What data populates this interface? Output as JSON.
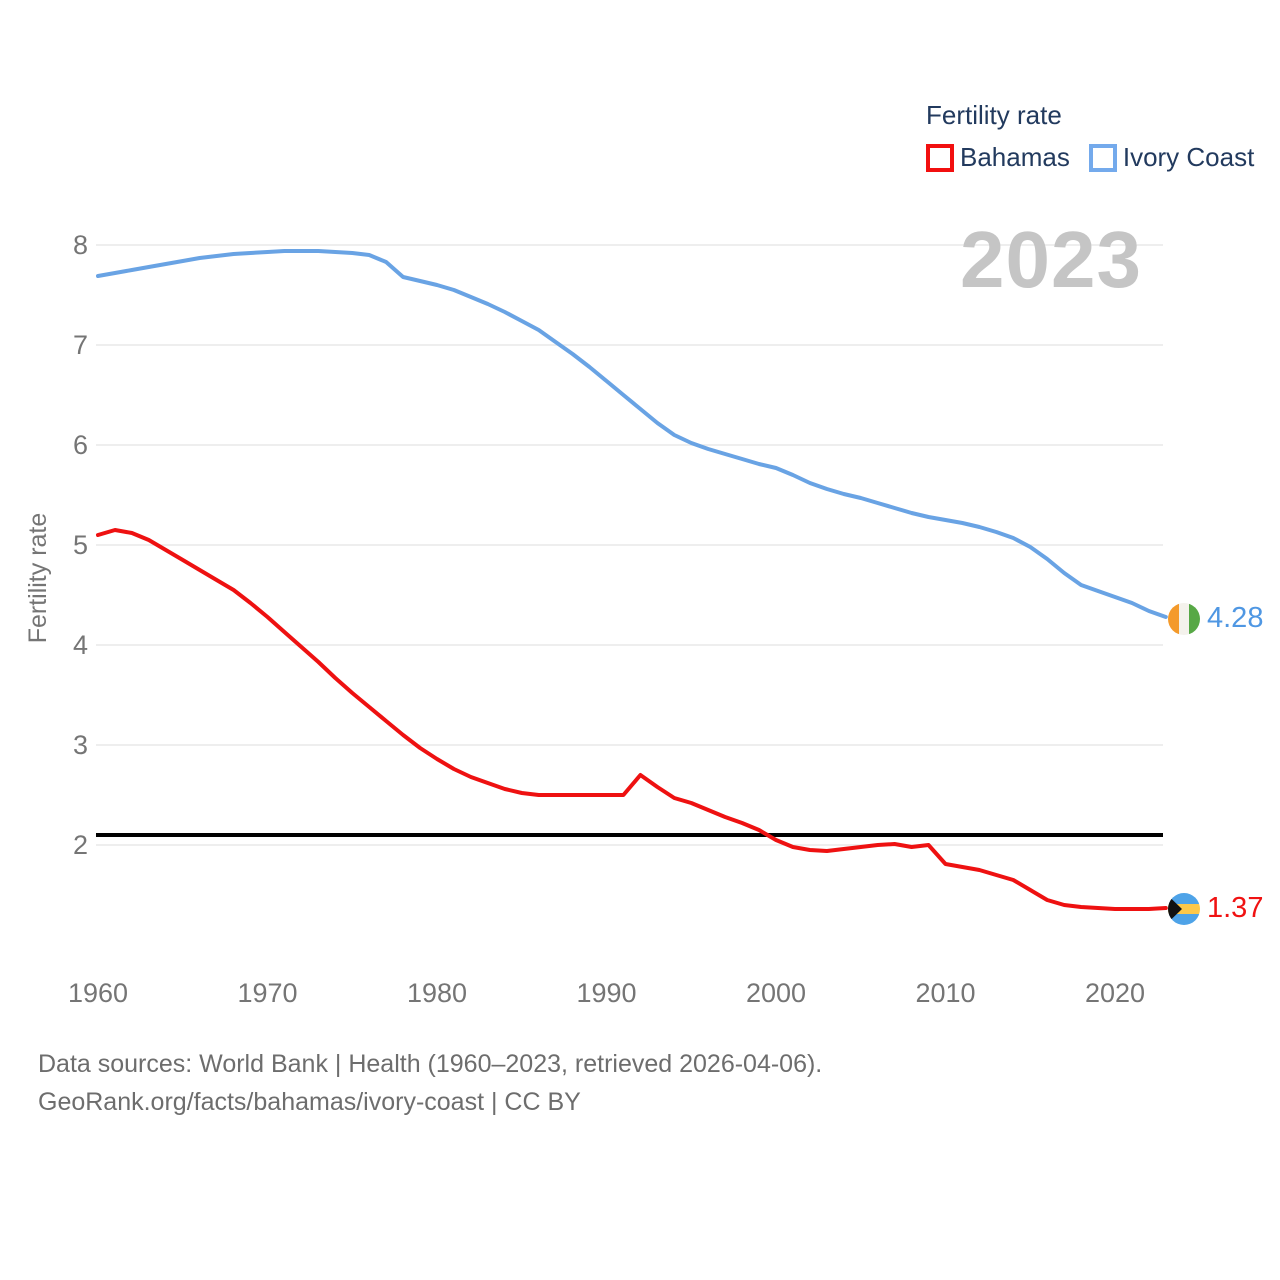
{
  "watermark": "2023",
  "legend": {
    "title": "Fertility rate",
    "items": [
      {
        "label": "Bahamas",
        "color": "#f20f0f"
      },
      {
        "label": "Ivory Coast",
        "color": "#74aaec"
      }
    ]
  },
  "y_axis": {
    "label": "Fertility rate",
    "ticks": [
      8,
      7,
      6,
      5,
      4,
      3,
      2
    ]
  },
  "x_axis": {
    "ticks": [
      1960,
      1970,
      1980,
      1990,
      2000,
      2010,
      2020
    ]
  },
  "reference_line": {
    "value": 2.1,
    "color": "#000000"
  },
  "end_labels": [
    {
      "country": "Ivory Coast",
      "value": "4.28",
      "color": "#4f97e3",
      "flag": "ivory-coast-flag"
    },
    {
      "country": "Bahamas",
      "value": "1.37",
      "color": "#f01212",
      "flag": "bahamas-flag"
    }
  ],
  "footer": {
    "line1": "Data sources: World Bank | Health (1960–2023, retrieved 2026-04-06).",
    "line2": "GeoRank.org/facts/bahamas/ivory-coast | CC BY"
  },
  "colors": {
    "bahamas_line": "#ee1111",
    "ivory_coast_line": "#69a3e4",
    "axis_text": "#757575",
    "gridline": "#e9e9e9",
    "legend_text": "#223a5e",
    "watermark": "#c5c5c5",
    "footer_text": "#6d6d6d",
    "ci_flag_orange": "#f49a2b",
    "ci_flag_white": "#f4f2ec",
    "ci_flag_green": "#57a846",
    "bs_flag_aqua": "#4ea3e8",
    "bs_flag_gold": "#fdc84a",
    "bs_flag_black": "#111111"
  },
  "chart_data": {
    "type": "line",
    "title": "Fertility rate",
    "xlabel": "",
    "ylabel": "Fertility rate",
    "xlim": [
      1960,
      2023
    ],
    "ylim": [
      1.2,
      8.2
    ],
    "grid": "horizontal",
    "legend_position": "top-right",
    "annotations": [
      "2023 watermark",
      "replacement-level line at 2.1"
    ],
    "series": [
      {
        "name": "Ivory Coast",
        "color": "#69a3e4",
        "end_value": 4.28,
        "points": [
          [
            1960,
            7.69
          ],
          [
            1961,
            7.72
          ],
          [
            1962,
            7.75
          ],
          [
            1963,
            7.78
          ],
          [
            1964,
            7.81
          ],
          [
            1965,
            7.84
          ],
          [
            1966,
            7.87
          ],
          [
            1967,
            7.89
          ],
          [
            1968,
            7.91
          ],
          [
            1969,
            7.92
          ],
          [
            1970,
            7.93
          ],
          [
            1971,
            7.94
          ],
          [
            1972,
            7.94
          ],
          [
            1973,
            7.94
          ],
          [
            1974,
            7.93
          ],
          [
            1975,
            7.92
          ],
          [
            1976,
            7.9
          ],
          [
            1977,
            7.83
          ],
          [
            1978,
            7.68
          ],
          [
            1979,
            7.64
          ],
          [
            1980,
            7.6
          ],
          [
            1981,
            7.55
          ],
          [
            1982,
            7.48
          ],
          [
            1983,
            7.41
          ],
          [
            1984,
            7.33
          ],
          [
            1985,
            7.24
          ],
          [
            1986,
            7.15
          ],
          [
            1987,
            7.03
          ],
          [
            1988,
            6.91
          ],
          [
            1989,
            6.78
          ],
          [
            1990,
            6.64
          ],
          [
            1991,
            6.5
          ],
          [
            1992,
            6.36
          ],
          [
            1993,
            6.22
          ],
          [
            1994,
            6.1
          ],
          [
            1995,
            6.02
          ],
          [
            1996,
            5.96
          ],
          [
            1997,
            5.91
          ],
          [
            1998,
            5.86
          ],
          [
            1999,
            5.81
          ],
          [
            2000,
            5.77
          ],
          [
            2001,
            5.7
          ],
          [
            2002,
            5.62
          ],
          [
            2003,
            5.56
          ],
          [
            2004,
            5.51
          ],
          [
            2005,
            5.47
          ],
          [
            2006,
            5.42
          ],
          [
            2007,
            5.37
          ],
          [
            2008,
            5.32
          ],
          [
            2009,
            5.28
          ],
          [
            2010,
            5.25
          ],
          [
            2011,
            5.22
          ],
          [
            2012,
            5.18
          ],
          [
            2013,
            5.13
          ],
          [
            2014,
            5.07
          ],
          [
            2015,
            4.98
          ],
          [
            2016,
            4.86
          ],
          [
            2017,
            4.72
          ],
          [
            2018,
            4.6
          ],
          [
            2019,
            4.54
          ],
          [
            2020,
            4.48
          ],
          [
            2021,
            4.42
          ],
          [
            2022,
            4.34
          ],
          [
            2023,
            4.28
          ]
        ]
      },
      {
        "name": "Bahamas",
        "color": "#ee1111",
        "end_value": 1.37,
        "points": [
          [
            1960,
            5.1
          ],
          [
            1961,
            5.15
          ],
          [
            1962,
            5.12
          ],
          [
            1963,
            5.05
          ],
          [
            1964,
            4.95
          ],
          [
            1965,
            4.85
          ],
          [
            1966,
            4.75
          ],
          [
            1967,
            4.65
          ],
          [
            1968,
            4.55
          ],
          [
            1969,
            4.42
          ],
          [
            1970,
            4.28
          ],
          [
            1971,
            4.13
          ],
          [
            1972,
            3.98
          ],
          [
            1973,
            3.83
          ],
          [
            1974,
            3.67
          ],
          [
            1975,
            3.52
          ],
          [
            1976,
            3.38
          ],
          [
            1977,
            3.24
          ],
          [
            1978,
            3.1
          ],
          [
            1979,
            2.97
          ],
          [
            1980,
            2.86
          ],
          [
            1981,
            2.76
          ],
          [
            1982,
            2.68
          ],
          [
            1983,
            2.62
          ],
          [
            1984,
            2.56
          ],
          [
            1985,
            2.52
          ],
          [
            1986,
            2.5
          ],
          [
            1987,
            2.5
          ],
          [
            1988,
            2.5
          ],
          [
            1989,
            2.5
          ],
          [
            1990,
            2.5
          ],
          [
            1991,
            2.5
          ],
          [
            1992,
            2.7
          ],
          [
            1993,
            2.58
          ],
          [
            1994,
            2.47
          ],
          [
            1995,
            2.42
          ],
          [
            1996,
            2.35
          ],
          [
            1997,
            2.28
          ],
          [
            1998,
            2.22
          ],
          [
            1999,
            2.15
          ],
          [
            2000,
            2.05
          ],
          [
            2001,
            1.98
          ],
          [
            2002,
            1.95
          ],
          [
            2003,
            1.94
          ],
          [
            2004,
            1.96
          ],
          [
            2005,
            1.98
          ],
          [
            2006,
            2.0
          ],
          [
            2007,
            2.01
          ],
          [
            2008,
            1.98
          ],
          [
            2009,
            2.0
          ],
          [
            2010,
            1.81
          ],
          [
            2011,
            1.78
          ],
          [
            2012,
            1.75
          ],
          [
            2013,
            1.7
          ],
          [
            2014,
            1.65
          ],
          [
            2015,
            1.55
          ],
          [
            2016,
            1.45
          ],
          [
            2017,
            1.4
          ],
          [
            2018,
            1.38
          ],
          [
            2019,
            1.37
          ],
          [
            2020,
            1.36
          ],
          [
            2021,
            1.36
          ],
          [
            2022,
            1.36
          ],
          [
            2023,
            1.37
          ]
        ]
      }
    ]
  }
}
